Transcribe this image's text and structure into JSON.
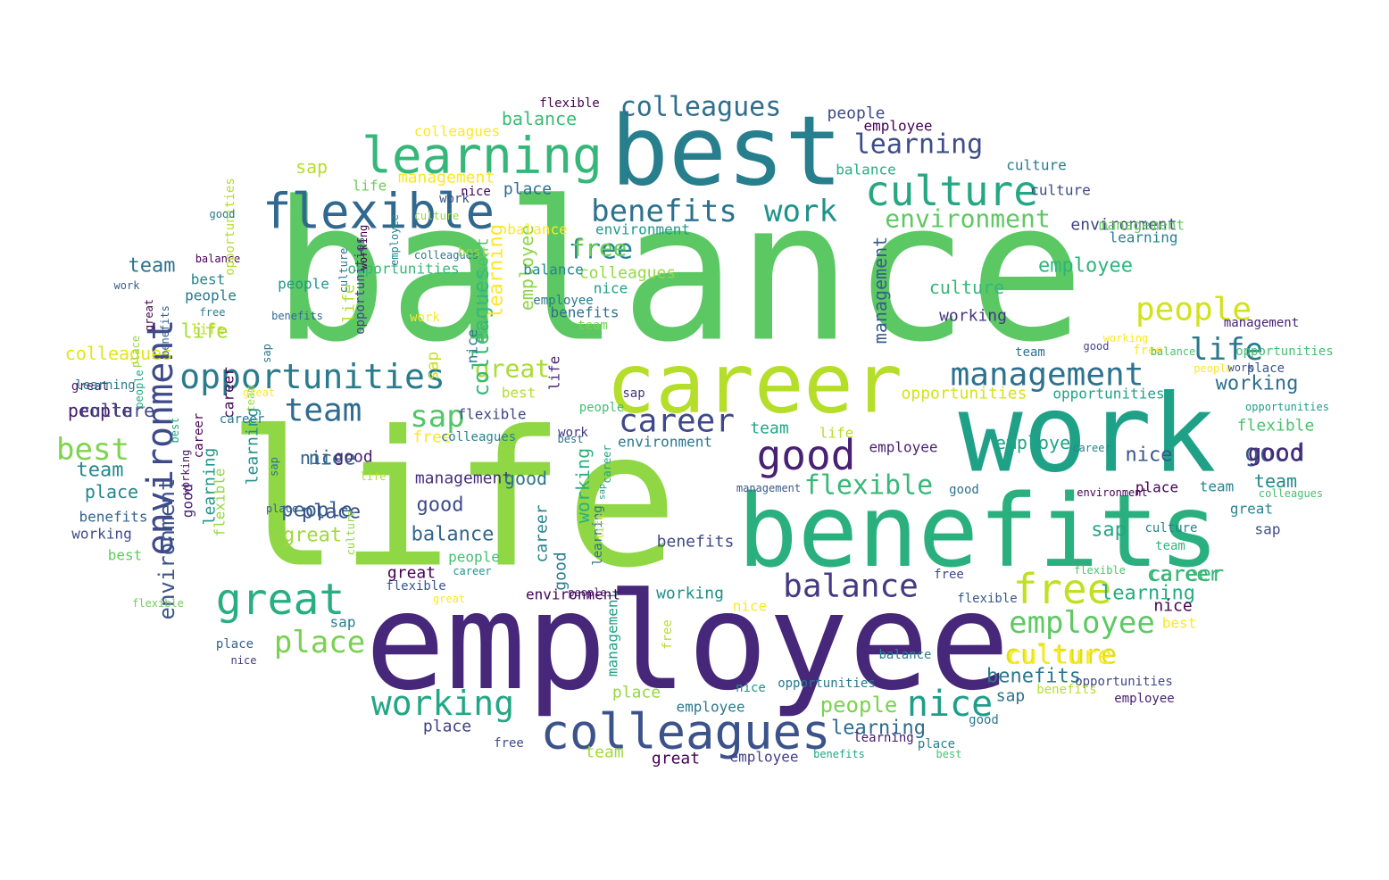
{
  "colors": {
    "background": "#ffffff",
    "palette": [
      "#440154",
      "#482475",
      "#414487",
      "#355f8d",
      "#2a788e",
      "#21918c",
      "#22a884",
      "#44bf70",
      "#7ad151",
      "#bddf26",
      "#fde725"
    ]
  },
  "words": [
    {
      "text": "balance",
      "color": "#5cc863"
    },
    {
      "text": "life",
      "color": "#8fd744"
    },
    {
      "text": "employee",
      "color": "#46277a"
    },
    {
      "text": "best",
      "color": "#277f8e"
    },
    {
      "text": "work",
      "color": "#1fa187"
    },
    {
      "text": "benefits",
      "color": "#2ab07f"
    },
    {
      "text": "career",
      "color": "#b5de2b"
    },
    {
      "text": "colleagues",
      "color": "#3b528b"
    },
    {
      "text": "learning",
      "color": "#35b779"
    },
    {
      "text": "flexible",
      "color": "#31688e"
    },
    {
      "text": "culture",
      "color": "#26a784"
    },
    {
      "text": "environment",
      "color": "#3e4a89"
    },
    {
      "text": "opportunities",
      "color": "#2a7b8e"
    },
    {
      "text": "great",
      "color": "#28ae80"
    },
    {
      "text": "free",
      "color": "#c2df23"
    },
    {
      "text": "management",
      "color": "#2c718e"
    },
    {
      "text": "good",
      "color": "#482173"
    },
    {
      "text": "balance",
      "color": "#443983"
    },
    {
      "text": "place",
      "color": "#7ad151"
    },
    {
      "text": "working",
      "color": "#22a785"
    },
    {
      "text": "nice",
      "color": "#1f9e89"
    },
    {
      "text": "people",
      "color": "#d2e21b"
    },
    {
      "text": "team",
      "color": "#2f6c8e"
    },
    {
      "text": "career",
      "color": "#3e4989"
    },
    {
      "text": "sap",
      "color": "#52c569"
    },
    {
      "text": "best",
      "color": "#7fd34e"
    },
    {
      "text": "great",
      "color": "#aadc32"
    },
    {
      "text": "employee",
      "color": "#5ec962"
    },
    {
      "text": "life",
      "color": "#2a788e"
    },
    {
      "text": "culture",
      "color": "#d8e219"
    },
    {
      "text": "learning",
      "color": "#3d4d8a"
    },
    {
      "text": "environment",
      "color": "#5ec962"
    },
    {
      "text": "colleagues",
      "color": "#2e6f8e"
    },
    {
      "text": "benefits",
      "color": "#2c728e"
    },
    {
      "text": "work",
      "color": "#20928c"
    },
    {
      "text": "management",
      "color": "#355e8d"
    },
    {
      "text": "culture",
      "color": "#35b779"
    },
    {
      "text": "flexible",
      "color": "#38b977"
    },
    {
      "text": "good",
      "color": "#39568c"
    },
    {
      "text": "nice",
      "color": "#3a548c"
    },
    {
      "text": "free",
      "color": "#25848e"
    },
    {
      "text": "great",
      "color": "#a0da39"
    },
    {
      "text": "people",
      "color": "#35608d"
    },
    {
      "text": "life",
      "color": "#a8db34"
    },
    {
      "text": "nice",
      "color": "#2d708e"
    },
    {
      "text": "learning",
      "color": "#27ad81"
    },
    {
      "text": "employee",
      "color": "#2fb47c"
    },
    {
      "text": "career",
      "color": "#3bbb75"
    },
    {
      "text": "people",
      "color": "#7cd250"
    },
    {
      "text": "place",
      "color": "#24868e"
    },
    {
      "text": "working",
      "color": "#2e6e8e"
    },
    {
      "text": "sap",
      "color": "#22a884"
    },
    {
      "text": "good",
      "color": "#3e4c8a"
    },
    {
      "text": "team",
      "color": "#23898e"
    },
    {
      "text": "learning",
      "color": "#2f6b8e"
    },
    {
      "text": "balance",
      "color": "#31678e"
    },
    {
      "text": "colleagues",
      "color": "#35b779"
    },
    {
      "text": "free",
      "color": "#6ece58"
    },
    {
      "text": "team",
      "color": "#24868e"
    },
    {
      "text": "working",
      "color": "#453781"
    },
    {
      "text": "employee",
      "color": "#20a386"
    },
    {
      "text": "environment",
      "color": "#414487"
    },
    {
      "text": "culture",
      "color": "#3e4989"
    },
    {
      "text": "colleagues",
      "color": "#95d840"
    },
    {
      "text": "opportunities",
      "color": "#d5e21a"
    },
    {
      "text": "opportunities",
      "color": "#20a386"
    },
    {
      "text": "benefits",
      "color": "#2a788e"
    },
    {
      "text": "free",
      "color": "#fde725"
    },
    {
      "text": "good",
      "color": "#482878"
    },
    {
      "text": "nice",
      "color": "#355f8d"
    },
    {
      "text": "place",
      "color": "#3b528b"
    },
    {
      "text": "sap",
      "color": "#2d708e"
    },
    {
      "text": "career",
      "color": "#35b779"
    },
    {
      "text": "balance",
      "color": "#3bbb75"
    },
    {
      "text": "benefits",
      "color": "#3e4989"
    },
    {
      "text": "employee",
      "color": "#481f70"
    },
    {
      "text": "environment",
      "color": "#2a778e"
    },
    {
      "text": "flexible",
      "color": "#4ac16d"
    },
    {
      "text": "culture",
      "color": "#fde725"
    },
    {
      "text": "people",
      "color": "#481b6d"
    },
    {
      "text": "working",
      "color": "#21918c"
    },
    {
      "text": "management",
      "color": "#472d7b"
    },
    {
      "text": "team",
      "color": "#20a486"
    },
    {
      "text": "life",
      "color": "#b8de29"
    },
    {
      "text": "sap",
      "color": "#b8de29"
    },
    {
      "text": "colleagues",
      "color": "#fde725"
    },
    {
      "text": "flexible",
      "color": "#440154"
    },
    {
      "text": "balance",
      "color": "#27ad81"
    },
    {
      "text": "people",
      "color": "#3e4a89"
    },
    {
      "text": "employee",
      "color": "#440154"
    },
    {
      "text": "sap",
      "color": "#c8e020"
    },
    {
      "text": "environment",
      "color": "#1f9a8a"
    },
    {
      "text": "life",
      "color": "#6ccd5a"
    },
    {
      "text": "nice",
      "color": "#440154"
    },
    {
      "text": "culture",
      "color": "#287c8e"
    },
    {
      "text": "learning",
      "color": "#26818e"
    },
    {
      "text": "management",
      "color": "#63cb5f"
    },
    {
      "text": "colleagues",
      "color": "#e5e419"
    },
    {
      "text": "environment",
      "color": "#3b528b"
    },
    {
      "text": "culture",
      "color": "#404688"
    },
    {
      "text": "team",
      "color": "#2c738e"
    },
    {
      "text": "best",
      "color": "#26828e"
    },
    {
      "text": "people",
      "color": "#2a788e"
    },
    {
      "text": "free",
      "color": "#27808e"
    },
    {
      "text": "balance",
      "color": "#440154"
    },
    {
      "text": "work",
      "color": "#355f8d"
    },
    {
      "text": "benefits",
      "color": "#31688e"
    },
    {
      "text": "people",
      "color": "#1f978b"
    },
    {
      "text": "life",
      "color": "#c0df25"
    },
    {
      "text": "work",
      "color": "#fde725"
    },
    {
      "text": "opportunities",
      "color": "#35b779"
    },
    {
      "text": "nice",
      "color": "#1fa088"
    },
    {
      "text": "sap",
      "color": "#46337f"
    },
    {
      "text": "work",
      "color": "#463480"
    },
    {
      "text": "place",
      "color": "#38588c"
    },
    {
      "text": "people",
      "color": "#fde725"
    },
    {
      "text": "work",
      "color": "#3b528b"
    },
    {
      "text": "opportunities",
      "color": "#1e9d89"
    },
    {
      "text": "opportunities",
      "color": "#44bf70"
    },
    {
      "text": "colleagues",
      "color": "#44bf70"
    },
    {
      "text": "management",
      "color": "#482374"
    },
    {
      "text": "great",
      "color": "#25848e"
    },
    {
      "text": "sap",
      "color": "#3e4c8a"
    },
    {
      "text": "team",
      "color": "#25838e"
    },
    {
      "text": "place",
      "color": "#440154"
    },
    {
      "text": "environment",
      "color": "#440154"
    },
    {
      "text": "team",
      "color": "#2c728e"
    },
    {
      "text": "working",
      "color": "#fde725"
    },
    {
      "text": "free",
      "color": "#fde725"
    },
    {
      "text": "balance",
      "color": "#4cc26c"
    },
    {
      "text": "good",
      "color": "#3f4788"
    },
    {
      "text": "career",
      "color": "#25838e"
    },
    {
      "text": "best",
      "color": "#fde725"
    },
    {
      "text": "nice",
      "color": "#440154"
    },
    {
      "text": "opportunities",
      "color": "#3e4989"
    },
    {
      "text": "benefits",
      "color": "#b5de2b"
    },
    {
      "text": "employee",
      "color": "#482173"
    },
    {
      "text": "flexible",
      "color": "#4cc26c"
    },
    {
      "text": "culture",
      "color": "#26828e"
    },
    {
      "text": "team",
      "color": "#32b67a"
    },
    {
      "text": "good",
      "color": "#2a788e"
    },
    {
      "text": "balance",
      "color": "#26828e"
    },
    {
      "text": "free",
      "color": "#3f4889"
    },
    {
      "text": "flexible",
      "color": "#39568c"
    },
    {
      "text": "good",
      "color": "#2c718e"
    },
    {
      "text": "management",
      "color": "#38588c"
    },
    {
      "text": "nice",
      "color": "#fde725"
    },
    {
      "text": "benefits",
      "color": "#21a685"
    },
    {
      "text": "best",
      "color": "#4ac16d"
    },
    {
      "text": "place",
      "color": "#287d8e"
    },
    {
      "text": "learning",
      "color": "#48186a"
    },
    {
      "text": "employee",
      "color": "#433e85"
    },
    {
      "text": "team",
      "color": "#a2da37"
    },
    {
      "text": "great",
      "color": "#440154"
    },
    {
      "text": "free",
      "color": "#3e4a89"
    },
    {
      "text": "place",
      "color": "#424186"
    },
    {
      "text": "sap",
      "color": "#287d8e"
    },
    {
      "text": "place",
      "color": "#355f8d"
    },
    {
      "text": "nice",
      "color": "#453882"
    },
    {
      "text": "flexible",
      "color": "#70cf57"
    },
    {
      "text": "working",
      "color": "#3e4a89"
    },
    {
      "text": "benefits",
      "color": "#33638d"
    },
    {
      "text": "great",
      "color": "#481467"
    },
    {
      "text": "best",
      "color": "#62cb5f"
    },
    {
      "text": "working",
      "color": "#48186a"
    },
    {
      "text": "career",
      "color": "#440154"
    },
    {
      "text": "learning",
      "color": "#1f958b"
    },
    {
      "text": "sap",
      "color": "#2c738e"
    },
    {
      "text": "place",
      "color": "#355f8d"
    },
    {
      "text": "culture",
      "color": "#95d840"
    },
    {
      "text": "life",
      "color": "#b0dd2f"
    },
    {
      "text": "people",
      "color": "#44bf70"
    },
    {
      "text": "career",
      "color": "#1f948c"
    },
    {
      "text": "flexible",
      "color": "#39568c"
    },
    {
      "text": "great",
      "color": "#fde725"
    },
    {
      "text": "good",
      "color": "#297b8e"
    },
    {
      "text": "people",
      "color": "#472c7a"
    },
    {
      "text": "learning",
      "color": "#2d718e"
    },
    {
      "text": "working",
      "color": "#2ab07f"
    },
    {
      "text": "career",
      "color": "#26828e"
    },
    {
      "text": "life",
      "color": "#c2df23"
    },
    {
      "text": "sap",
      "color": "#1f9a8a"
    },
    {
      "text": "career",
      "color": "#20a486"
    },
    {
      "text": "management",
      "color": "#1fa088"
    },
    {
      "text": "free",
      "color": "#b5de2b"
    },
    {
      "text": "opportunities",
      "color": "#2a788e"
    },
    {
      "text": "nice",
      "color": "#21918c"
    },
    {
      "text": "employee",
      "color": "#2a788e"
    },
    {
      "text": "place",
      "color": "#95d840"
    },
    {
      "text": "environment",
      "color": "#440154"
    },
    {
      "text": "good",
      "color": "#2b748e"
    },
    {
      "text": "great",
      "color": "#440154"
    },
    {
      "text": "good",
      "color": "#482071"
    },
    {
      "text": "flexible",
      "color": "#414487"
    },
    {
      "text": "colleagues",
      "color": "#26828e"
    },
    {
      "text": "best",
      "color": "#2b758e"
    },
    {
      "text": "people",
      "color": "#44bf70"
    },
    {
      "text": "best",
      "color": "#b5de2b"
    },
    {
      "text": "life",
      "color": "#482475"
    },
    {
      "text": "employee",
      "color": "#8bd646"
    },
    {
      "text": "learning",
      "color": "#fde725"
    },
    {
      "text": "environment",
      "color": "#4ac16d"
    },
    {
      "text": "nice",
      "color": "#2a788e"
    },
    {
      "text": "benefits",
      "color": "#2e6e8e"
    },
    {
      "text": "team",
      "color": "#7ad151"
    },
    {
      "text": "employee",
      "color": "#2a788e"
    },
    {
      "text": "balance",
      "color": "#24868e"
    },
    {
      "text": "balance",
      "color": "#fde725"
    },
    {
      "text": "place",
      "color": "#2e6e8e"
    },
    {
      "text": "management",
      "color": "#fde725"
    },
    {
      "text": "work",
      "color": "#3b528b"
    },
    {
      "text": "culture",
      "color": "#95d840"
    },
    {
      "text": "colleagues",
      "color": "#2a788e"
    },
    {
      "text": "best",
      "color": "#95d840"
    },
    {
      "text": "employee",
      "color": "#26828e"
    },
    {
      "text": "working",
      "color": "#440154"
    },
    {
      "text": "opportunities",
      "color": "#414487"
    },
    {
      "text": "life",
      "color": "#b5de2b"
    },
    {
      "text": "culture",
      "color": "#2a788e"
    },
    {
      "text": "team",
      "color": "#95d840"
    },
    {
      "text": "opportunities",
      "color": "#b5de2b"
    },
    {
      "text": "good",
      "color": "#2a788e"
    },
    {
      "text": "sap",
      "color": "#2a788e"
    },
    {
      "text": "career",
      "color": "#440154"
    },
    {
      "text": "great",
      "color": "#fde725"
    },
    {
      "text": "career",
      "color": "#2a788e"
    },
    {
      "text": "learning",
      "color": "#21918c"
    },
    {
      "text": "flexible",
      "color": "#95d840"
    },
    {
      "text": "good",
      "color": "#482475"
    },
    {
      "text": "best",
      "color": "#22a884"
    },
    {
      "text": "place",
      "color": "#95d840"
    },
    {
      "text": "great",
      "color": "#440154"
    },
    {
      "text": "benefits",
      "color": "#355f8d"
    },
    {
      "text": "people",
      "color": "#22a884"
    },
    {
      "text": "learning",
      "color": "#2a788e"
    },
    {
      "text": "culture",
      "color": "#fde725"
    },
    {
      "text": "sap",
      "color": "#414487"
    },
    {
      "text": "place",
      "color": "#2a788e"
    },
    {
      "text": "nice",
      "color": "#355f8d"
    },
    {
      "text": "team",
      "color": "#2a788e"
    },
    {
      "text": "great",
      "color": "#440154"
    },
    {
      "text": "flexible",
      "color": "#7ad151"
    }
  ]
}
